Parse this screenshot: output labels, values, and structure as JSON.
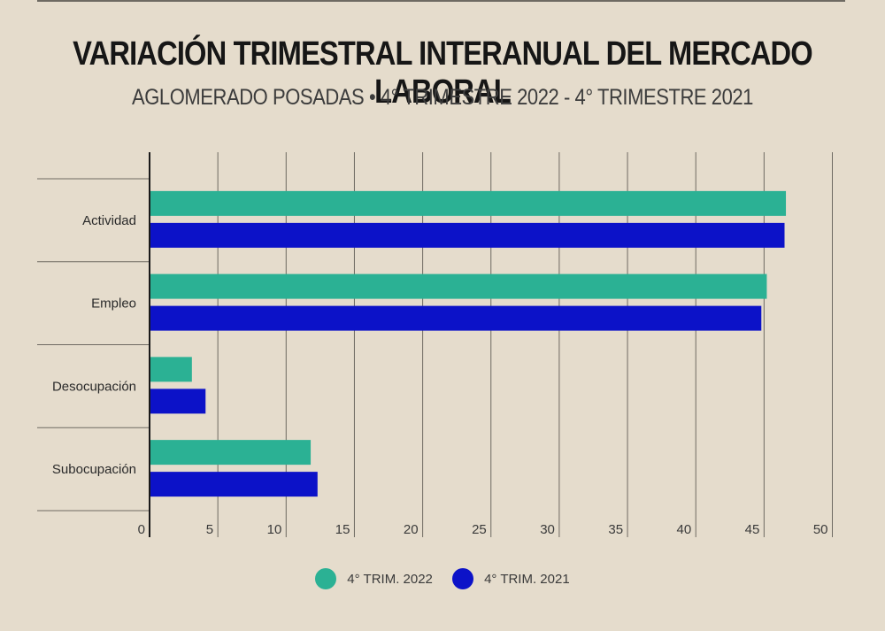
{
  "title": "VARIACIÓN TRIMESTRAL INTERANUAL DEL MERCADO LABORAL",
  "subtitle": "AGLOMERADO POSADAS • 4° TRIMESTRE 2022 - 4° TRIMESTRE 2021",
  "colors": {
    "s2022": "#2bb194",
    "s2021": "#0c12c8",
    "background": "#e5dccc",
    "grid": "#6e6a62"
  },
  "chart_data": {
    "type": "bar",
    "orientation": "horizontal",
    "categories": [
      "Actividad",
      "Empleo",
      "Desocupación",
      "Subocupación"
    ],
    "series": [
      {
        "name": "4° TRIM. 2022",
        "values": [
          46.6,
          45.2,
          3.1,
          11.8
        ]
      },
      {
        "name": "4° TRIM. 2021",
        "values": [
          46.5,
          44.8,
          4.1,
          12.3
        ]
      }
    ],
    "xlim": [
      0,
      50
    ],
    "xticks": [
      0,
      5,
      10,
      15,
      20,
      25,
      30,
      35,
      40,
      45,
      50
    ],
    "grid": true,
    "legend_position": "bottom"
  }
}
